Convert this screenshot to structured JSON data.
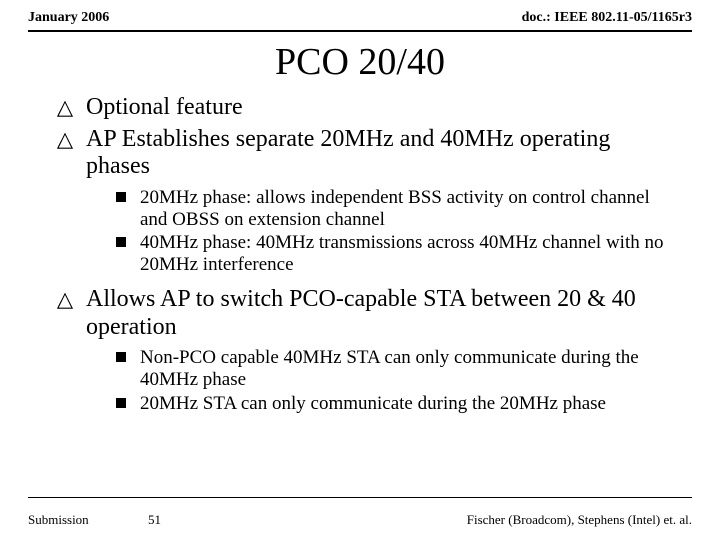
{
  "header": {
    "left": "January 2006",
    "right": "doc.: IEEE 802.11-05/1165r3"
  },
  "title": "PCO 20/40",
  "bullets": [
    {
      "text": "Optional feature",
      "sub": []
    },
    {
      "text": "AP Establishes separate 20MHz and 40MHz operating phases",
      "sub": [
        "20MHz phase:  allows independent BSS activity on control channel and OBSS on extension channel",
        "40MHz phase: 40MHz transmissions across 40MHz channel with no 20MHz interference"
      ]
    },
    {
      "text": "Allows AP to switch PCO-capable STA between 20 & 40 operation",
      "sub": [
        "Non-PCO capable 40MHz STA can only communicate during the 40MHz phase",
        "20MHz STA can only communicate during the 20MHz phase"
      ]
    }
  ],
  "footer": {
    "left": "Submission",
    "slide": "51",
    "right": "Fischer (Broadcom), Stephens (Intel) et. al."
  },
  "style": {
    "background": "#ffffff",
    "text_color": "#000000",
    "title_fontsize": 38,
    "main_fontsize": 24,
    "sub_fontsize": 19,
    "header_fontsize": 14,
    "footer_fontsize": 13
  }
}
